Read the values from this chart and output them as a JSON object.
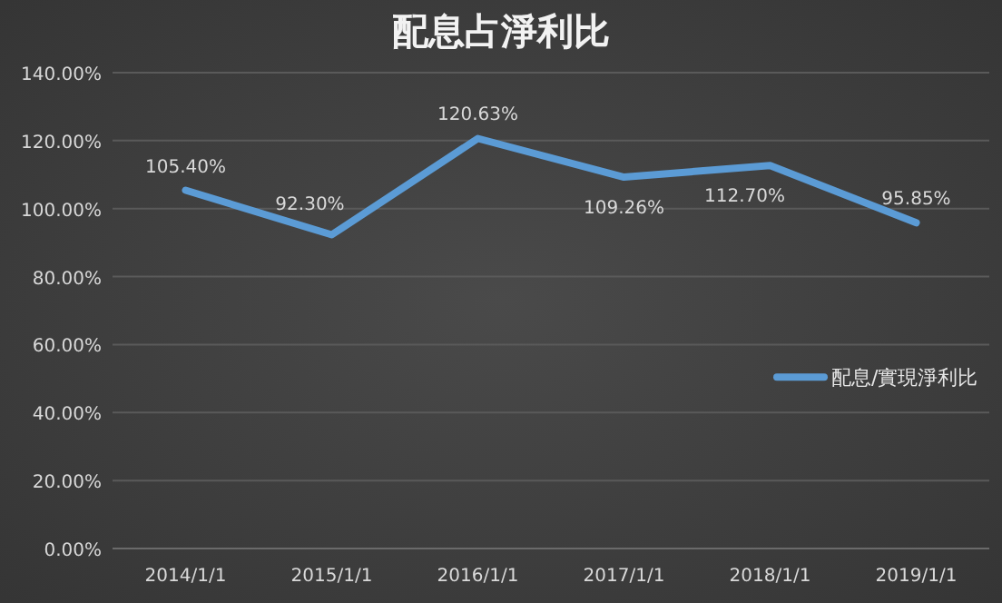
{
  "chart_data": {
    "type": "line",
    "title": "配息占淨利比",
    "categories": [
      "2014/1/1",
      "2015/1/1",
      "2016/1/1",
      "2017/1/1",
      "2018/1/1",
      "2019/1/1"
    ],
    "series": [
      {
        "name": "配息/實現淨利比",
        "color": "#5b9bd5",
        "values": [
          105.4,
          92.3,
          120.63,
          109.26,
          112.7,
          95.85
        ],
        "value_labels": [
          "105.40%",
          "92.30%",
          "120.63%",
          "109.26%",
          "112.70%",
          "95.85%"
        ]
      }
    ],
    "ylim": [
      0,
      140
    ],
    "yticks": [
      {
        "value": 0,
        "label": "0.00%"
      },
      {
        "value": 20,
        "label": "20.00%"
      },
      {
        "value": 40,
        "label": "40.00%"
      },
      {
        "value": 60,
        "label": "60.00%"
      },
      {
        "value": 80,
        "label": "80.00%"
      },
      {
        "value": 100,
        "label": "100.00%"
      },
      {
        "value": 120,
        "label": "120.00%"
      },
      {
        "value": 140,
        "label": "140.00%"
      }
    ],
    "grid": "y",
    "legend": "right",
    "marker": "none",
    "line_style": "solid"
  }
}
